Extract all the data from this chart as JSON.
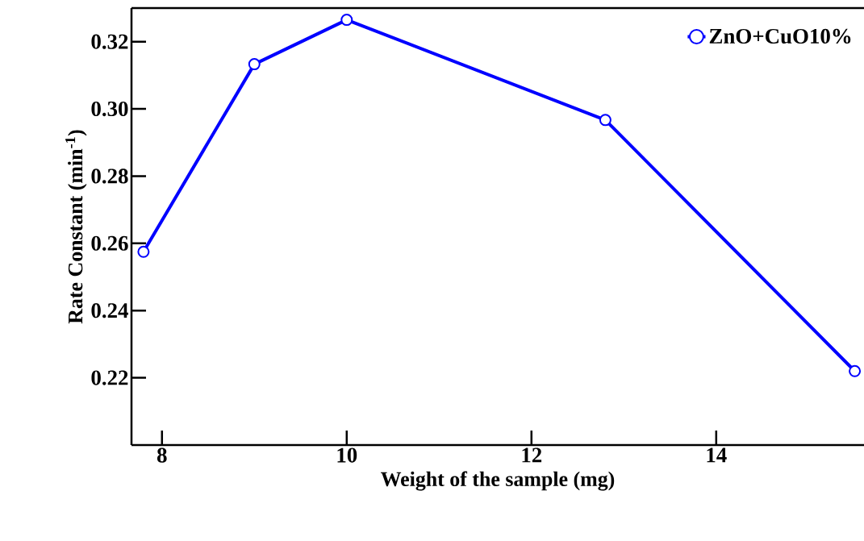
{
  "chart_data": {
    "type": "line",
    "xlabel": "Weight of the sample (mg)",
    "ylabel": "Rate Constant (min$^{-1}$)",
    "x": [
      7.8,
      9.0,
      10.0,
      12.8,
      15.5
    ],
    "series": [
      {
        "name": "ZnO+CuO10%",
        "color": "#0000ff",
        "values": [
          0.2575,
          0.3133,
          0.3265,
          0.2967,
          0.222
        ]
      }
    ],
    "xlim": [
      7.67,
      15.6
    ],
    "ylim": [
      0.2,
      0.33
    ],
    "xticks": [
      8,
      10,
      12,
      14
    ],
    "yticks": [
      0.22,
      0.24,
      0.26,
      0.28,
      {
        "value": 0.3,
        "label": "0.30"
      },
      0.32
    ],
    "grid": false,
    "legend": "top right",
    "marker": "circle",
    "line_style": "solid"
  }
}
